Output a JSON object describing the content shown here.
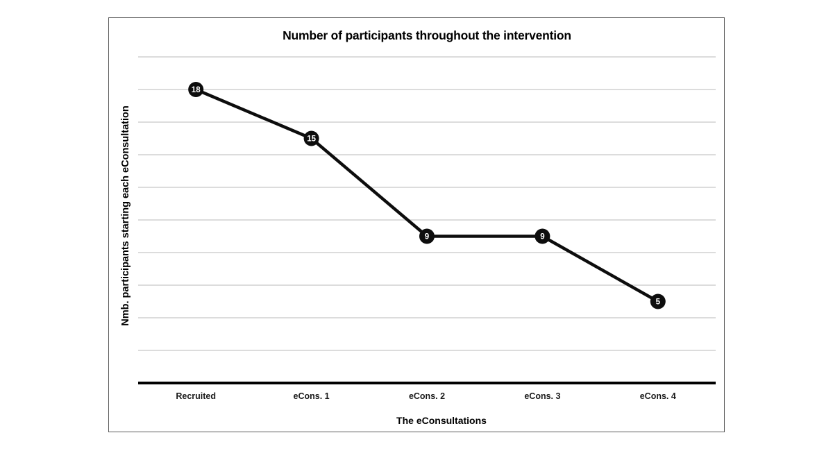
{
  "theme": {
    "bg": "#ffffff",
    "text": "#1a1a1a",
    "grid": "#b9b9b9",
    "axis": "#000000",
    "line": "#0d0d0d",
    "marker": "#0d0d0d",
    "marker-text": "#ffffff",
    "frame": "#595959"
  },
  "chart_data": {
    "type": "line",
    "title": "Number of participants throughout the intervention",
    "xlabel": "The eConsultations",
    "ylabel": "Nmb. participants starting each eConsultation",
    "categories": [
      "Recruited",
      "eCons. 1",
      "eCons. 2",
      "eCons. 3",
      "eCons. 4"
    ],
    "values": [
      18,
      15,
      9,
      9,
      5
    ],
    "data_labels_visible": true,
    "ylim": [
      0,
      20
    ],
    "grid_step": 2,
    "grid": true,
    "legend": "none",
    "y_tick_labels_visible": false,
    "marker_style": "filled-circle"
  }
}
